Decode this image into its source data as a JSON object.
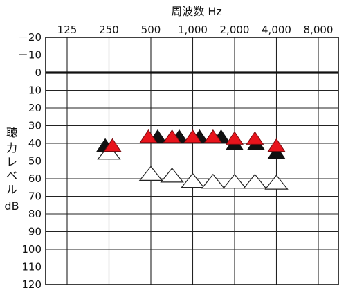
{
  "chart_data": {
    "type": "scatter",
    "title": "周波数 Hz",
    "ylabel": [
      "聴",
      "力",
      "レ",
      "ベ",
      "ル",
      "dB"
    ],
    "x_tick_labels": [
      "125",
      "250",
      "500",
      "1,000",
      "2,000",
      "4,000",
      "8,000"
    ],
    "x_ticks_hz": [
      125,
      250,
      500,
      1000,
      2000,
      4000,
      8000
    ],
    "y_tick_labels": [
      "－20",
      "－10",
      "0",
      "10",
      "20",
      "30",
      "40",
      "50",
      "60",
      "70",
      "80",
      "90",
      "100",
      "110",
      "120"
    ],
    "ylim": [
      -20,
      120
    ],
    "y_inverted": true,
    "x_scale": "log2",
    "grid": true,
    "series": [
      {
        "color": "#ffffff",
        "points": [
          {
            "x": 250,
            "y": 45
          },
          {
            "x": 500,
            "y": 57
          },
          {
            "x": 710,
            "y": 58
          },
          {
            "x": 1000,
            "y": 61
          },
          {
            "x": 1400,
            "y": 61.5
          },
          {
            "x": 2000,
            "y": 61.5
          },
          {
            "x": 2800,
            "y": 61.5
          },
          {
            "x": 4000,
            "y": 62
          }
        ]
      },
      {
        "color": "#111111",
        "points": [
          {
            "x": 235,
            "y": 41
          },
          {
            "x": 560,
            "y": 36
          },
          {
            "x": 800,
            "y": 36
          },
          {
            "x": 1120,
            "y": 36
          },
          {
            "x": 1600,
            "y": 36
          },
          {
            "x": 2000,
            "y": 40
          },
          {
            "x": 2850,
            "y": 40
          },
          {
            "x": 4000,
            "y": 45
          }
        ]
      },
      {
        "color": "#e8141c",
        "points": [
          {
            "x": 265,
            "y": 41
          },
          {
            "x": 480,
            "y": 36
          },
          {
            "x": 710,
            "y": 36
          },
          {
            "x": 1000,
            "y": 36
          },
          {
            "x": 1400,
            "y": 36
          },
          {
            "x": 2000,
            "y": 37
          },
          {
            "x": 2800,
            "y": 37
          },
          {
            "x": 4000,
            "y": 41
          }
        ]
      }
    ]
  }
}
